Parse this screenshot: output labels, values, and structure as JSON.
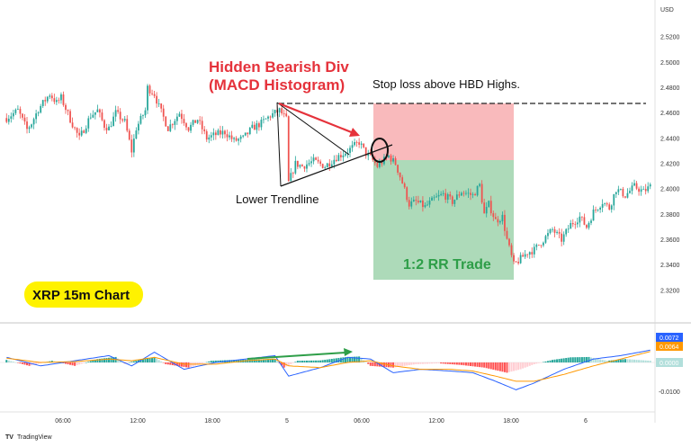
{
  "chart_data": [
    {
      "type": "candlestick",
      "title": "XRP 15m Chart",
      "currency": "USD",
      "ylim": [
        2.31,
        2.53
      ],
      "y_ticks": [
        "2.5200",
        "2.5000",
        "2.4800",
        "2.4600",
        "2.4400",
        "2.4200",
        "2.4000",
        "2.3800",
        "2.3600",
        "2.3400",
        "2.3200"
      ],
      "x_ticks": [
        "06:00",
        "12:00",
        "18:00",
        "5",
        "06:00",
        "12:00",
        "18:00",
        "6"
      ],
      "close_path": [
        [
          0,
          2.456
        ],
        [
          5,
          2.462
        ],
        [
          9,
          2.447
        ],
        [
          11,
          2.452
        ],
        [
          14,
          2.463
        ],
        [
          19,
          2.475
        ],
        [
          22,
          2.468
        ],
        [
          24,
          2.472
        ],
        [
          28,
          2.455
        ],
        [
          32,
          2.44
        ],
        [
          37,
          2.458
        ],
        [
          40,
          2.462
        ],
        [
          43,
          2.45
        ],
        [
          45,
          2.448
        ],
        [
          48,
          2.46
        ],
        [
          52,
          2.453
        ],
        [
          55,
          2.43
        ],
        [
          57,
          2.448
        ],
        [
          59,
          2.455
        ],
        [
          61,
          2.462
        ],
        [
          62,
          2.48
        ],
        [
          65,
          2.475
        ],
        [
          67,
          2.465
        ],
        [
          71,
          2.448
        ],
        [
          76,
          2.46
        ],
        [
          80,
          2.448
        ],
        [
          84,
          2.455
        ],
        [
          88,
          2.44
        ],
        [
          92,
          2.443
        ],
        [
          96,
          2.445
        ],
        [
          100,
          2.438
        ],
        [
          104,
          2.44
        ],
        [
          108,
          2.448
        ],
        [
          112,
          2.452
        ],
        [
          116,
          2.458
        ],
        [
          120,
          2.462
        ],
        [
          123,
          2.455
        ],
        [
          124,
          2.405
        ],
        [
          127,
          2.42
        ],
        [
          130,
          2.418
        ],
        [
          135,
          2.422
        ],
        [
          140,
          2.418
        ],
        [
          145,
          2.425
        ],
        [
          150,
          2.43
        ],
        [
          155,
          2.437
        ],
        [
          158,
          2.428
        ],
        [
          160,
          2.425
        ],
        [
          163,
          2.418
        ],
        [
          168,
          2.426
        ],
        [
          171,
          2.42
        ],
        [
          174,
          2.405
        ],
        [
          177,
          2.388
        ],
        [
          180,
          2.39
        ],
        [
          184,
          2.386
        ],
        [
          188,
          2.392
        ],
        [
          192,
          2.396
        ],
        [
          196,
          2.39
        ],
        [
          200,
          2.398
        ],
        [
          205,
          2.395
        ],
        [
          208,
          2.403
        ],
        [
          210,
          2.38
        ],
        [
          212,
          2.388
        ],
        [
          215,
          2.375
        ],
        [
          218,
          2.378
        ],
        [
          220,
          2.36
        ],
        [
          223,
          2.34
        ],
        [
          226,
          2.345
        ],
        [
          229,
          2.35
        ],
        [
          232,
          2.352
        ],
        [
          236,
          2.36
        ],
        [
          240,
          2.368
        ],
        [
          244,
          2.36
        ],
        [
          248,
          2.372
        ],
        [
          252,
          2.378
        ],
        [
          255,
          2.37
        ],
        [
          258,
          2.382
        ],
        [
          262,
          2.39
        ],
        [
          265,
          2.385
        ],
        [
          268,
          2.4
        ],
        [
          272,
          2.395
        ],
        [
          276,
          2.402
        ],
        [
          280,
          2.398
        ],
        [
          283,
          2.402
        ]
      ],
      "candle_count": 284,
      "macd": {
        "macd_line_label": "0.0072",
        "signal_line_label": "0.0064",
        "zero_label": "0.0000",
        "lower_label": "-0.0100",
        "histogram_path": [
          [
            0,
            0.0015
          ],
          [
            10,
            -0.002
          ],
          [
            20,
            0.001
          ],
          [
            30,
            -0.002
          ],
          [
            40,
            0.002
          ],
          [
            48,
            0.0032
          ],
          [
            52,
            -0.0006
          ],
          [
            60,
            0.002
          ],
          [
            65,
            0.003
          ],
          [
            70,
            -0.001
          ],
          [
            80,
            -0.003
          ],
          [
            90,
            0.001
          ],
          [
            100,
            0.0015
          ],
          [
            110,
            0.0018
          ],
          [
            118,
            0.002
          ],
          [
            122,
            -0.003
          ],
          [
            128,
            0.001
          ],
          [
            138,
            0.0012
          ],
          [
            148,
            0.003
          ],
          [
            155,
            0.0035
          ],
          [
            160,
            -0.002
          ],
          [
            170,
            -0.003
          ],
          [
            180,
            -0.001
          ],
          [
            190,
            -0.0005
          ],
          [
            200,
            -0.0015
          ],
          [
            210,
            -0.003
          ],
          [
            220,
            -0.006
          ],
          [
            226,
            -0.004
          ],
          [
            232,
            -0.001
          ],
          [
            240,
            0.0015
          ],
          [
            248,
            0.003
          ],
          [
            256,
            0.0032
          ],
          [
            264,
            0.001
          ],
          [
            272,
            0.002
          ],
          [
            283,
            0.001
          ]
        ],
        "macd_path": [
          [
            0,
            0.003
          ],
          [
            15,
            -0.002
          ],
          [
            30,
            0.001
          ],
          [
            45,
            0.004
          ],
          [
            55,
            -0.002
          ],
          [
            65,
            0.006
          ],
          [
            78,
            -0.004
          ],
          [
            92,
            0.0
          ],
          [
            105,
            0.002
          ],
          [
            118,
            0.004
          ],
          [
            124,
            -0.008
          ],
          [
            138,
            -0.003
          ],
          [
            150,
            0.003
          ],
          [
            160,
            0.002
          ],
          [
            170,
            -0.006
          ],
          [
            182,
            -0.004
          ],
          [
            195,
            -0.005
          ],
          [
            205,
            -0.006
          ],
          [
            215,
            -0.011
          ],
          [
            224,
            -0.016
          ],
          [
            232,
            -0.012
          ],
          [
            245,
            -0.004
          ],
          [
            258,
            0.002
          ],
          [
            270,
            0.004
          ],
          [
            283,
            0.0072
          ]
        ],
        "signal_path": [
          [
            0,
            0.0025
          ],
          [
            15,
            0.0
          ],
          [
            30,
            0.0005
          ],
          [
            45,
            0.002
          ],
          [
            55,
            0.001
          ],
          [
            65,
            0.003
          ],
          [
            78,
            -0.001
          ],
          [
            92,
            -0.001
          ],
          [
            105,
            0.001
          ],
          [
            118,
            0.002
          ],
          [
            124,
            -0.002
          ],
          [
            138,
            -0.003
          ],
          [
            150,
            0.0
          ],
          [
            160,
            0.001
          ],
          [
            170,
            -0.002
          ],
          [
            182,
            -0.004
          ],
          [
            195,
            -0.004
          ],
          [
            205,
            -0.005
          ],
          [
            215,
            -0.008
          ],
          [
            224,
            -0.011
          ],
          [
            232,
            -0.011
          ],
          [
            245,
            -0.007
          ],
          [
            258,
            -0.002
          ],
          [
            270,
            0.002
          ],
          [
            283,
            0.0064
          ]
        ]
      }
    }
  ],
  "annotations": {
    "hidden_div_line1": "Hidden Bearish Div",
    "hidden_div_line2": "(MACD Histogram)",
    "stop_loss": "Stop loss above HBD Highs.",
    "lower_trendline": "Lower Trendline",
    "rr_trade": "1:2 RR Trade",
    "chart_badge": "XRP 15m Chart",
    "branding": "TradingView",
    "branding_logo": "TV"
  },
  "colors": {
    "up": "#26a69a",
    "down": "#ef5350",
    "up_hist_strong": "#26a69a",
    "up_hist_light": "#b2dfdb",
    "down_hist_strong": "#ff5252",
    "down_hist_light": "#ffcdd2",
    "macd_line": "#2962ff",
    "signal_line": "#ff9800",
    "stop_zone": "#f8aeb0",
    "target_zone": "#9fd4ad",
    "annotation_red": "#e5323b",
    "annotation_green": "#2e9e48",
    "badge_yellow": "#fff200"
  }
}
